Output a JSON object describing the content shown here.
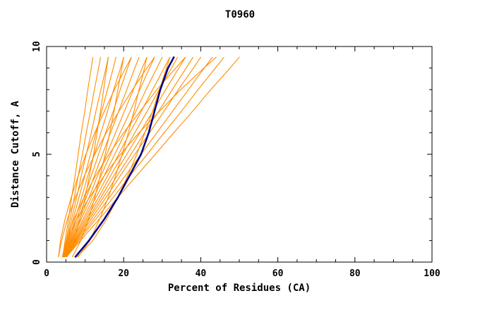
{
  "chart_data": {
    "type": "line",
    "title": "T0960",
    "xlabel": "Percent of Residues (CA)",
    "ylabel": "Distance Cutoff, A",
    "xlim": [
      0,
      100
    ],
    "ylim": [
      0,
      10
    ],
    "x_major_ticks": [
      0,
      20,
      40,
      60,
      80,
      100
    ],
    "x_minor_step": 5,
    "y_major_ticks": [
      0,
      5,
      10
    ],
    "y_minor_step": 1,
    "grid": false,
    "legend": "none",
    "colors": {
      "model": "#FF8C00",
      "highlight": "#00008B",
      "axis": "#000000",
      "background": "#FFFFFF"
    },
    "y_samples": [
      0.25,
      1,
      2,
      3,
      4,
      5,
      6,
      7,
      8,
      9,
      9.5
    ],
    "series": [
      {
        "name": "model-01",
        "role": "model",
        "x": [
          4.2,
          4.8,
          5.7,
          6.5,
          7.4,
          8.2,
          9.0,
          9.9,
          10.7,
          11.6,
          12
        ]
      },
      {
        "name": "model-02",
        "role": "model",
        "x": [
          4.3,
          5.1,
          6.1,
          7.2,
          8.2,
          9.3,
          10.3,
          11.4,
          12.4,
          13.5,
          14
        ]
      },
      {
        "name": "model-03",
        "role": "model",
        "x": [
          4.3,
          5.3,
          6.5,
          7.8,
          9.0,
          10.3,
          11.6,
          12.8,
          14.1,
          15.4,
          16
        ]
      },
      {
        "name": "model-04",
        "role": "model",
        "x": [
          4.4,
          5.5,
          6.9,
          8.4,
          9.9,
          11.4,
          12.8,
          14.3,
          15.8,
          17.3,
          18
        ]
      },
      {
        "name": "model-05",
        "role": "model",
        "x": [
          4.4,
          5.7,
          7.4,
          9.1,
          10.7,
          12.4,
          14.1,
          15.8,
          17.4,
          19.2,
          20
        ]
      },
      {
        "name": "model-06",
        "role": "model",
        "x": [
          4.5,
          5.9,
          7.8,
          9.7,
          11.6,
          13.5,
          15.3,
          17.3,
          19.1,
          21.0,
          22
        ]
      },
      {
        "name": "model-07",
        "role": "model",
        "x": [
          4.5,
          6.1,
          8.2,
          10.3,
          12.4,
          14.5,
          16.6,
          18.7,
          20.8,
          22.9,
          24
        ]
      },
      {
        "name": "model-08",
        "role": "model",
        "x": [
          4.6,
          6.3,
          8.6,
          11.0,
          13.2,
          15.6,
          17.9,
          20.2,
          22.5,
          24.8,
          26
        ]
      },
      {
        "name": "model-09",
        "role": "model",
        "x": [
          4.6,
          6.5,
          9.0,
          11.6,
          14.1,
          16.6,
          19.1,
          21.7,
          24.2,
          26.7,
          28
        ]
      },
      {
        "name": "model-10",
        "role": "model",
        "x": [
          4.7,
          6.7,
          9.5,
          12.2,
          14.9,
          17.7,
          20.4,
          23.2,
          25.8,
          28.6,
          30
        ]
      },
      {
        "name": "model-11",
        "role": "model",
        "x": [
          4.7,
          6.9,
          9.9,
          12.8,
          15.8,
          18.7,
          21.6,
          24.6,
          27.5,
          30.5,
          32
        ]
      },
      {
        "name": "model-12",
        "role": "model",
        "x": [
          4.8,
          7.2,
          10.3,
          13.5,
          16.6,
          19.8,
          22.9,
          26.1,
          29.2,
          32.4,
          34
        ]
      },
      {
        "name": "model-13",
        "role": "model",
        "x": [
          4.8,
          7.4,
          10.7,
          14.1,
          17.4,
          20.8,
          24.2,
          27.6,
          30.9,
          34.3,
          36
        ]
      },
      {
        "name": "model-14",
        "role": "model",
        "x": [
          4.9,
          7.6,
          11.1,
          14.7,
          18.3,
          21.9,
          25.4,
          29.1,
          32.6,
          36.2,
          38
        ]
      },
      {
        "name": "model-15",
        "role": "model",
        "x": [
          4.9,
          7.8,
          11.6,
          15.4,
          19.1,
          22.9,
          26.7,
          30.5,
          34.2,
          38.1,
          40
        ]
      },
      {
        "name": "model-16",
        "role": "model",
        "x": [
          5.0,
          8.1,
          12.2,
          16.3,
          20.4,
          24.5,
          28.6,
          32.7,
          36.8,
          40.9,
          43
        ]
      },
      {
        "name": "model-17",
        "role": "model",
        "x": [
          5.1,
          8.4,
          12.8,
          17.3,
          21.6,
          26.1,
          30.5,
          35.0,
          39.3,
          43.8,
          46
        ]
      },
      {
        "name": "model-18",
        "role": "model",
        "x": [
          5.2,
          8.8,
          13.7,
          18.5,
          23.3,
          28.2,
          33.0,
          37.9,
          42.6,
          47.6,
          50
        ]
      },
      {
        "name": "model-19",
        "role": "model",
        "x": [
          6.7,
          8.9,
          10.9,
          12.5,
          13.9,
          15.2,
          16.4,
          17.5,
          18.5,
          19.5,
          20
        ]
      },
      {
        "name": "model-20",
        "role": "model",
        "x": [
          8.2,
          11.2,
          13.8,
          16.0,
          17.9,
          19.6,
          21.2,
          22.7,
          24.0,
          25.4,
          26
        ]
      },
      {
        "name": "model-21",
        "role": "model",
        "x": [
          8.0,
          12.0,
          15.6,
          18.5,
          21.0,
          23.4,
          25.5,
          27.5,
          29.3,
          31.1,
          32
        ]
      },
      {
        "name": "model-22",
        "role": "model",
        "x": [
          5.3,
          7.1,
          8.7,
          10.0,
          11.1,
          12.2,
          13.1,
          14.0,
          14.8,
          15.6,
          16
        ]
      },
      {
        "name": "model-23",
        "role": "model",
        "x": [
          4.1,
          5.1,
          7.1,
          9.7,
          12.7,
          16.2,
          20.0,
          24.3,
          28.6,
          33.5,
          36
        ]
      },
      {
        "name": "model-24",
        "role": "model",
        "x": [
          3.1,
          3.9,
          5.4,
          7.5,
          9.8,
          12.5,
          15.5,
          18.8,
          22.3,
          26.0,
          28
        ]
      },
      {
        "name": "model-25",
        "role": "model",
        "x": [
          4.2,
          5.4,
          7.8,
          11.1,
          14.9,
          19.2,
          24.0,
          29.3,
          34.8,
          40.8,
          44
        ]
      },
      {
        "name": "model-26",
        "role": "model",
        "x": [
          3.1,
          3.6,
          4.8,
          6.4,
          8.2,
          10.2,
          12.5,
          15.0,
          17.6,
          20.5,
          22
        ]
      },
      {
        "name": "highlight",
        "role": "highlight",
        "x": [
          7.5,
          11,
          15,
          18.5,
          21.5,
          24.5,
          26.5,
          28,
          29.5,
          31.5,
          33
        ]
      }
    ]
  }
}
